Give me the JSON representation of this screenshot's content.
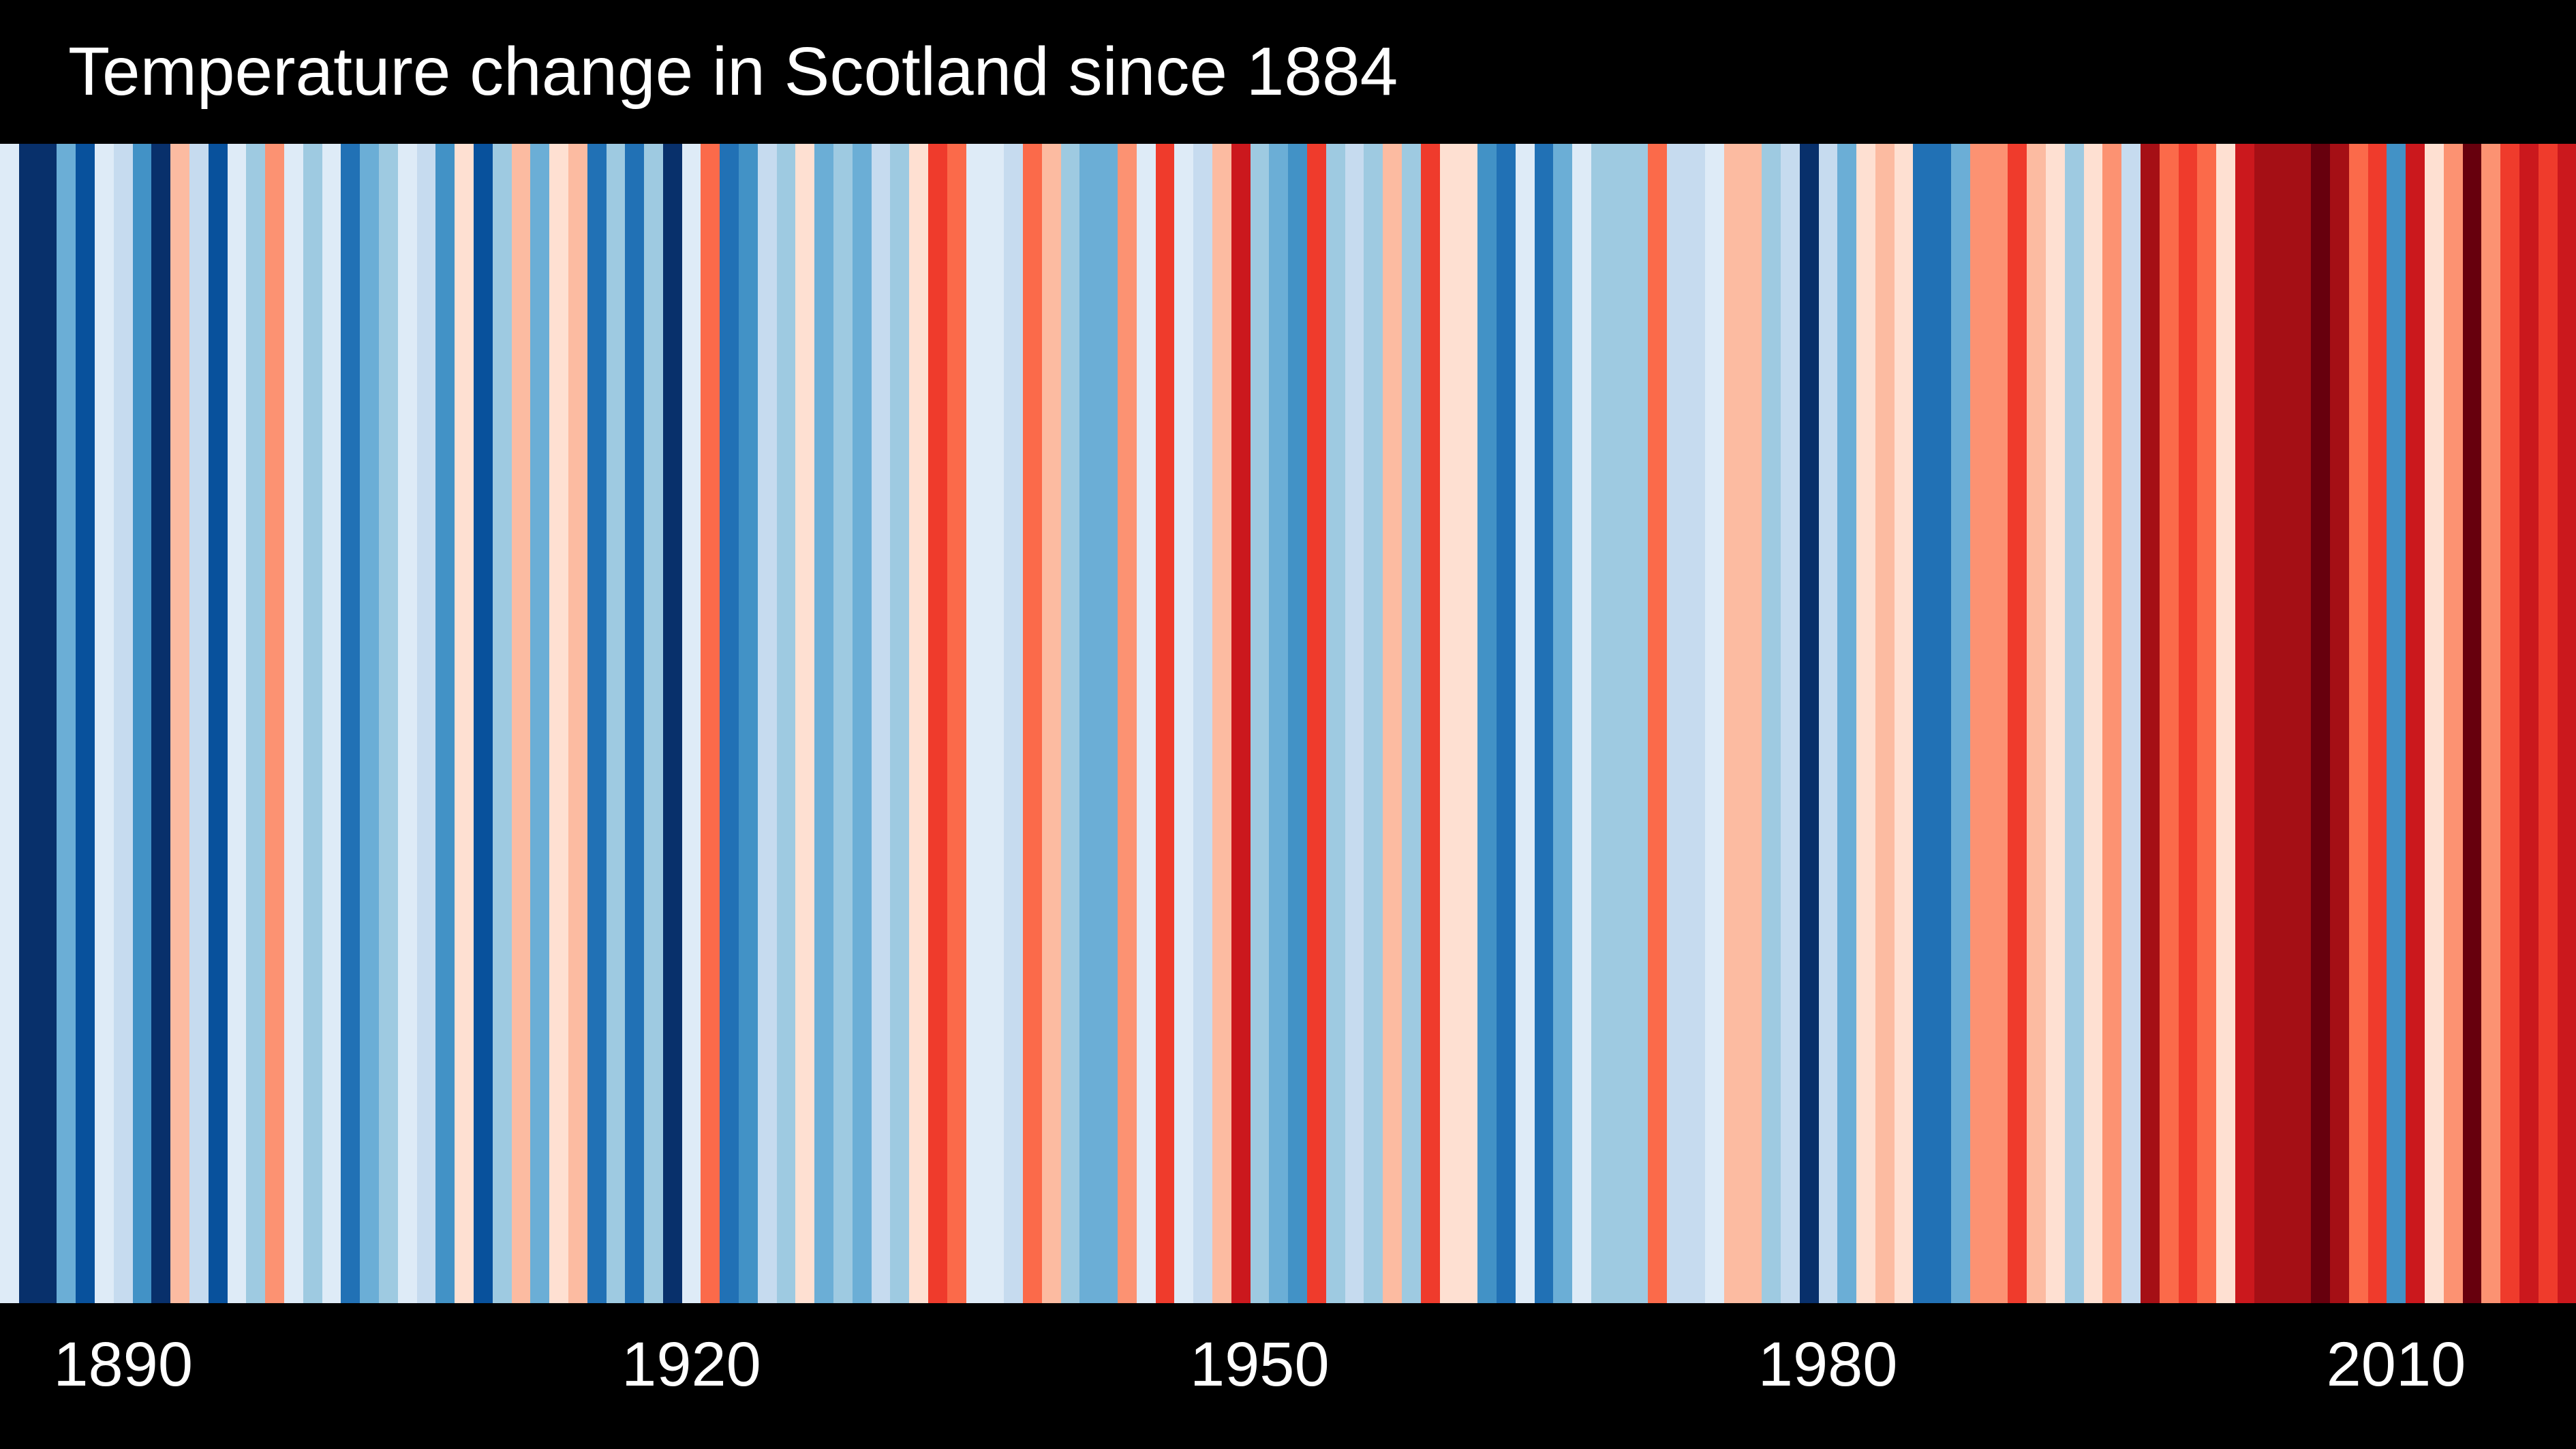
{
  "header": {
    "title": "Temperature change in Scotland since 1884"
  },
  "footer": {
    "ticks": [
      {
        "label": "1890",
        "year": 1890
      },
      {
        "label": "1920",
        "year": 1920
      },
      {
        "label": "1950",
        "year": 1950
      },
      {
        "label": "1980",
        "year": 1980
      },
      {
        "label": "2010",
        "year": 2010
      }
    ]
  },
  "chart_data": {
    "type": "heatmap",
    "subtype": "warming-stripes",
    "title": "Temperature change in Scotland since 1884",
    "x_start_year": 1884,
    "x_end_year": 2019,
    "n_stripes": 136,
    "xlabel": "",
    "ylabel": "",
    "grid": false,
    "legend_position": "none",
    "background_color": "#000000",
    "text_color": "#ffffff",
    "xtick_years": [
      1890,
      1920,
      1950,
      1980,
      2010
    ],
    "palette_cold_to_warm": [
      "#08306b",
      "#08519c",
      "#2171b5",
      "#4292c6",
      "#6baed6",
      "#9ecae1",
      "#c6dbef",
      "#deebf7",
      "#fee0d2",
      "#fcbba1",
      "#fc9272",
      "#fb6a4a",
      "#ef3b2c",
      "#cb181d",
      "#a50f15",
      "#67000d"
    ],
    "stripe_colors": [
      "#deebf7",
      "#08306b",
      "#08306b",
      "#6baed6",
      "#08519c",
      "#deebf7",
      "#c6dbef",
      "#4292c6",
      "#08306b",
      "#fcbba1",
      "#c6dbef",
      "#08519c",
      "#deebf7",
      "#9ecae1",
      "#fc9272",
      "#deebf7",
      "#9ecae1",
      "#deebf7",
      "#2171b5",
      "#6baed6",
      "#9ecae1",
      "#deebf7",
      "#c6dbef",
      "#4292c6",
      "#fee0d2",
      "#08519c",
      "#9ecae1",
      "#fcbba1",
      "#6baed6",
      "#fee0d2",
      "#fcbba1",
      "#2171b5",
      "#9ecae1",
      "#2171b5",
      "#9ecae1",
      "#08306b",
      "#deebf7",
      "#fb6a4a",
      "#2171b5",
      "#4292c6",
      "#c6dbef",
      "#9ecae1",
      "#fee0d2",
      "#6baed6",
      "#9ecae1",
      "#6baed6",
      "#c6dbef",
      "#9ecae1",
      "#fee0d2",
      "#ef3b2c",
      "#fb6a4a",
      "#deebf7",
      "#deebf7",
      "#c6dbef",
      "#fb6a4a",
      "#fcbba1",
      "#9ecae1",
      "#6baed6",
      "#6baed6",
      "#fc9272",
      "#deebf7",
      "#ef3b2c",
      "#deebf7",
      "#c6dbef",
      "#fcbba1",
      "#cb181d",
      "#9ecae1",
      "#6baed6",
      "#4292c6",
      "#ef3b2c",
      "#9ecae1",
      "#c6dbef",
      "#9ecae1",
      "#fcbba1",
      "#9ecae1",
      "#ef3b2c",
      "#fee0d2",
      "#fee0d2",
      "#4292c6",
      "#2171b5",
      "#deebf7",
      "#2171b5",
      "#6baed6",
      "#deebf7",
      "#9ecae1",
      "#9ecae1",
      "#9ecae1",
      "#fb6a4a",
      "#c6dbef",
      "#c6dbef",
      "#deebf7",
      "#fcbba1",
      "#fcbba1",
      "#9ecae1",
      "#c6dbef",
      "#08306b",
      "#c6dbef",
      "#6baed6",
      "#fee0d2",
      "#fcbba1",
      "#fee0d2",
      "#2171b5",
      "#2171b5",
      "#6baed6",
      "#fc9272",
      "#fc9272",
      "#ef3b2c",
      "#fcbba1",
      "#fee0d2",
      "#9ecae1",
      "#fee0d2",
      "#fc9272",
      "#c6dbef",
      "#a50f15",
      "#fb6a4a",
      "#ef3b2c",
      "#fb6a4a",
      "#fee0d2",
      "#cb181d",
      "#a50f15",
      "#a50f15",
      "#a50f15",
      "#67000d",
      "#a50f15",
      "#fb6a4a",
      "#ef3b2c",
      "#4292c6",
      "#cb181d",
      "#fee0d2",
      "#fc9272",
      "#67000d",
      "#fc9272",
      "#ef3b2c",
      "#cb181d",
      "#ef3b2c",
      "#cb181d"
    ]
  }
}
